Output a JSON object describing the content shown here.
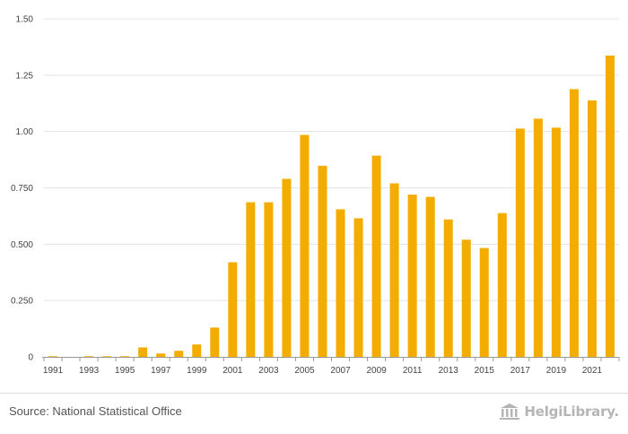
{
  "chart_data": {
    "type": "bar",
    "categories": [
      "1991",
      "1992",
      "1993",
      "1994",
      "1995",
      "1996",
      "1997",
      "1998",
      "1999",
      "2000",
      "2001",
      "2002",
      "2003",
      "2004",
      "2005",
      "2006",
      "2007",
      "2008",
      "2009",
      "2010",
      "2011",
      "2012",
      "2013",
      "2014",
      "2015",
      "2016",
      "2017",
      "2018",
      "2019",
      "2020",
      "2021",
      "2022"
    ],
    "x_tick_labels": [
      "1991",
      "1993",
      "1995",
      "1997",
      "1999",
      "2001",
      "2003",
      "2005",
      "2007",
      "2009",
      "2011",
      "2013",
      "2015",
      "2017",
      "2019",
      "2021"
    ],
    "values": [
      0.003,
      0.0,
      0.003,
      0.003,
      0.003,
      0.042,
      0.015,
      0.027,
      0.055,
      0.13,
      0.42,
      0.686,
      0.686,
      0.79,
      0.985,
      0.848,
      0.655,
      0.615,
      0.893,
      0.77,
      0.72,
      0.71,
      0.61,
      0.52,
      0.483,
      0.638,
      1.013,
      1.057,
      1.017,
      1.188,
      1.138,
      1.337
    ],
    "y_ticks": [
      0,
      0.25,
      0.5,
      0.75,
      1.0,
      1.25,
      1.5
    ],
    "y_tick_labels": [
      "0",
      "0.250",
      "0.500",
      "0.750",
      "1.00",
      "1.25",
      "1.50"
    ],
    "ylim": [
      0,
      1.5
    ],
    "title": "",
    "xlabel": "",
    "ylabel": "",
    "grid": true,
    "bar_color": "#f5ac00"
  },
  "footer": {
    "source": "Source: National Statistical Office",
    "brand": "HelgiLibrary."
  },
  "colors": {
    "bar": "#f5ac00",
    "grid": "#e3e3e3",
    "axis": "#999999",
    "text": "#444444",
    "brand": "#b5b5b5"
  },
  "icons": {
    "brand_logo": "library-columns-icon"
  }
}
